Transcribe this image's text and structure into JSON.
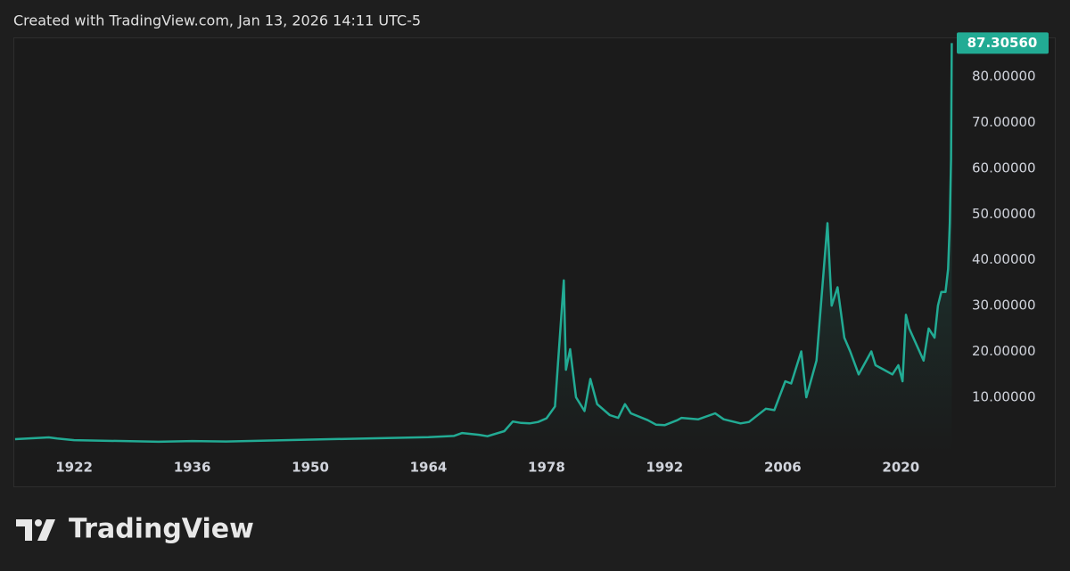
{
  "chart_data": {
    "type": "line",
    "attribution": "Created with TradingView.com, Jan 13, 2026 14:11 UTC-5",
    "watermark": "TradingView",
    "color": "#22ab94",
    "x": [
      1915,
      1919,
      1920,
      1922,
      1932,
      1936,
      1940,
      1950,
      1964,
      1967,
      1968,
      1970,
      1971,
      1973,
      1974,
      1975,
      1976,
      1977,
      1978,
      1979,
      1980.05,
      1980.3,
      1980.8,
      1981.5,
      1982.5,
      1983.2,
      1984,
      1985.5,
      1986.5,
      1987.3,
      1988,
      1990,
      1991,
      1992,
      1993.5,
      1994,
      1996,
      1998,
      1999,
      2001,
      2002,
      2004,
      2005,
      2006.3,
      2007,
      2008.2,
      2008.8,
      2010,
      2011.3,
      2011.8,
      2012.5,
      2013.3,
      2014,
      2015,
      2016.5,
      2017,
      2018,
      2019,
      2019.7,
      2020.2,
      2020.6,
      2021,
      2022.7,
      2023.3,
      2024,
      2024.4,
      2024.8,
      2025.3,
      2025.6,
      2025.8,
      2025.95,
      2026.04
    ],
    "values": [
      0.85,
      1.25,
      1.0,
      0.65,
      0.3,
      0.45,
      0.35,
      0.75,
      1.29,
      1.55,
      2.2,
      1.8,
      1.5,
      2.6,
      4.7,
      4.4,
      4.3,
      4.6,
      5.4,
      8,
      35.5,
      16,
      20.5,
      10,
      7,
      14,
      8.5,
      6.1,
      5.5,
      8.5,
      6.5,
      5,
      4,
      3.9,
      5,
      5.5,
      5.2,
      6.5,
      5.2,
      4.3,
      4.6,
      7.5,
      7.2,
      13.5,
      13,
      20,
      10,
      18,
      48,
      30,
      34,
      23,
      20,
      15,
      20,
      17,
      16,
      15,
      17,
      13.5,
      28,
      25,
      18,
      25,
      23,
      30,
      33,
      33,
      38,
      48,
      62,
      87.3056
    ],
    "last_price": {
      "value": 87.3056,
      "label": "87.30560"
    },
    "xlim": [
      1914.8,
      2026.1
    ],
    "ylim": [
      -2.06,
      88.55
    ],
    "xticks": [
      1922,
      1936,
      1950,
      1964,
      1978,
      1992,
      2006,
      2020
    ],
    "yticks": [
      {
        "value": 10,
        "label": "10.00000"
      },
      {
        "value": 20,
        "label": "20.00000"
      },
      {
        "value": 30,
        "label": "30.00000"
      },
      {
        "value": 40,
        "label": "40.00000"
      },
      {
        "value": 50,
        "label": "50.00000"
      },
      {
        "value": 60,
        "label": "60.00000"
      },
      {
        "value": 70,
        "label": "70.00000"
      },
      {
        "value": 80,
        "label": "80.00000"
      }
    ]
  }
}
